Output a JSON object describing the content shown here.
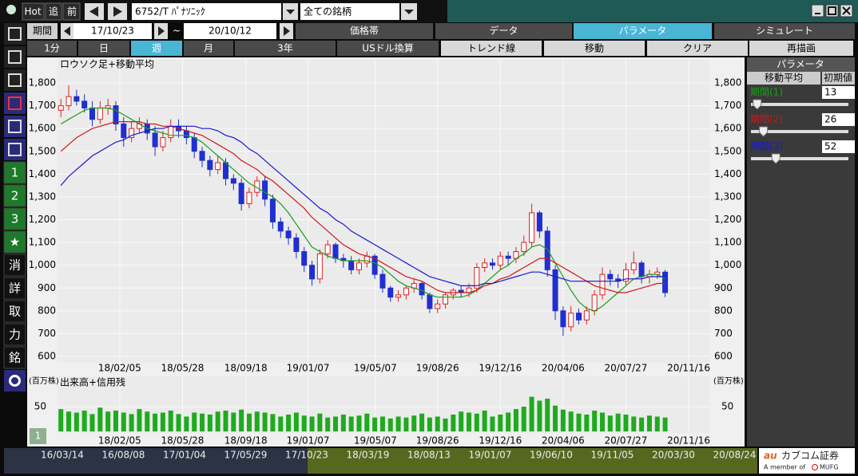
{
  "toolbar": {
    "hot": "Hot",
    "chase": "追",
    "prev": "前",
    "symbol": "6752/T ﾊﾟﾅｿﾆｯｸ",
    "market": "全ての銘柄"
  },
  "period": {
    "label": "期間",
    "from": "17/10/23",
    "sep": "~",
    "to": "20/10/12"
  },
  "tabs": [
    "価格帯",
    "データ",
    "パラメータ",
    "シミュレート"
  ],
  "active_tab": 2,
  "buttons": [
    "1分",
    "日",
    "週",
    "月",
    "3年",
    "USドル換算",
    "トレンド線",
    "移動",
    "クリア",
    "再描画"
  ],
  "active_button": 2,
  "side_tools": [
    "1",
    "2",
    "3",
    "★",
    "消",
    "詳",
    "取",
    "力",
    "銘"
  ],
  "pager": "1",
  "panel": {
    "title": "パラメータ",
    "col1": "移動平均",
    "col2": "初期値",
    "params": [
      {
        "label": "期間(1)",
        "value": 13
      },
      {
        "label": "期間(2)",
        "value": 26
      },
      {
        "label": "期間(3)",
        "value": 52
      }
    ]
  },
  "timeline": [
    "16/03/14",
    "16/08/08",
    "17/01/04",
    "17/05/29",
    "17/10/23",
    "18/03/19",
    "18/08/13",
    "19/01/07",
    "19/06/10",
    "19/11/05",
    "20/03/30",
    "20/08/24"
  ],
  "logo": {
    "au": "au",
    "brand": "カブコム証券",
    "member": "A member of",
    "mufg": "MUFG"
  },
  "chart_data": [
    {
      "type": "candlestick",
      "title": "ロウソク足+移動平均",
      "up_color": "#e02020",
      "down_color": "#1f2fd0",
      "x": [
        "17/10/23",
        "17/11/06",
        "17/11/20",
        "17/12/04",
        "17/12/18",
        "18/01/01",
        "18/01/15",
        "18/01/29",
        "18/02/12",
        "18/02/26",
        "18/03/12",
        "18/03/26",
        "18/04/09",
        "18/04/23",
        "18/05/07",
        "18/05/21",
        "18/06/04",
        "18/06/18",
        "18/07/02",
        "18/07/16",
        "18/07/30",
        "18/08/13",
        "18/08/27",
        "18/09/10",
        "18/09/24",
        "18/10/08",
        "18/10/22",
        "18/11/05",
        "18/11/19",
        "18/12/03",
        "18/12/17",
        "18/12/31",
        "19/01/14",
        "19/01/28",
        "19/02/11",
        "19/02/25",
        "19/03/11",
        "19/03/25",
        "19/04/08",
        "19/04/22",
        "19/05/06",
        "19/05/20",
        "19/06/03",
        "19/06/17",
        "19/07/01",
        "19/07/15",
        "19/07/29",
        "19/08/12",
        "19/08/26",
        "19/09/09",
        "19/09/23",
        "19/10/07",
        "19/10/21",
        "19/11/04",
        "19/11/18",
        "19/12/02",
        "19/12/16",
        "19/12/30",
        "20/01/13",
        "20/01/27",
        "20/02/10",
        "20/02/24",
        "20/03/09",
        "20/03/23",
        "20/04/06",
        "20/04/20",
        "20/05/04",
        "20/05/18",
        "20/06/01",
        "20/06/15",
        "20/06/29",
        "20/07/13",
        "20/07/27",
        "20/08/10",
        "20/08/24",
        "20/09/07",
        "20/09/21",
        "20/10/05"
      ],
      "open": [
        1680,
        1700,
        1740,
        1720,
        1690,
        1640,
        1690,
        1700,
        1620,
        1560,
        1600,
        1620,
        1580,
        1520,
        1560,
        1610,
        1590,
        1560,
        1500,
        1460,
        1420,
        1450,
        1380,
        1360,
        1270,
        1320,
        1370,
        1290,
        1190,
        1150,
        1120,
        1060,
        1000,
        940,
        1050,
        1090,
        1030,
        1020,
        980,
        1010,
        1040,
        960,
        900,
        860,
        870,
        900,
        920,
        870,
        810,
        830,
        870,
        890,
        880,
        900,
        990,
        1010,
        1000,
        1040,
        1030,
        1060,
        1100,
        1230,
        1150,
        980,
        800,
        730,
        790,
        760,
        800,
        870,
        960,
        940,
        930,
        980,
        1010,
        950,
        960,
        970
      ],
      "high": [
        1730,
        1790,
        1770,
        1750,
        1720,
        1720,
        1730,
        1720,
        1650,
        1630,
        1650,
        1640,
        1610,
        1590,
        1640,
        1640,
        1610,
        1580,
        1520,
        1480,
        1480,
        1470,
        1400,
        1380,
        1340,
        1390,
        1390,
        1310,
        1210,
        1170,
        1140,
        1080,
        1020,
        1070,
        1110,
        1100,
        1050,
        1040,
        1030,
        1060,
        1050,
        980,
        910,
        890,
        910,
        940,
        930,
        880,
        850,
        880,
        900,
        910,
        920,
        1010,
        1030,
        1030,
        1060,
        1060,
        1080,
        1130,
        1270,
        1240,
        1170,
        1000,
        820,
        820,
        810,
        820,
        890,
        990,
        980,
        960,
        1010,
        1060,
        1020,
        980,
        990,
        980
      ],
      "low": [
        1650,
        1680,
        1700,
        1670,
        1610,
        1620,
        1660,
        1590,
        1520,
        1540,
        1580,
        1550,
        1480,
        1500,
        1540,
        1560,
        1530,
        1470,
        1430,
        1390,
        1400,
        1350,
        1330,
        1240,
        1250,
        1300,
        1260,
        1160,
        1120,
        1090,
        1030,
        970,
        910,
        920,
        1030,
        1010,
        990,
        960,
        960,
        990,
        940,
        880,
        840,
        840,
        850,
        880,
        850,
        790,
        790,
        810,
        850,
        860,
        860,
        880,
        970,
        980,
        980,
        1000,
        1010,
        1040,
        1080,
        1120,
        950,
        760,
        690,
        710,
        740,
        740,
        780,
        850,
        910,
        900,
        910,
        960,
        920,
        920,
        940,
        860
      ],
      "close": [
        1700,
        1740,
        1720,
        1690,
        1640,
        1690,
        1700,
        1620,
        1560,
        1600,
        1620,
        1580,
        1520,
        1560,
        1610,
        1590,
        1560,
        1500,
        1460,
        1420,
        1450,
        1380,
        1360,
        1270,
        1320,
        1370,
        1290,
        1190,
        1150,
        1120,
        1060,
        1000,
        940,
        1050,
        1090,
        1030,
        1020,
        980,
        1010,
        1040,
        960,
        900,
        860,
        870,
        900,
        920,
        870,
        810,
        830,
        870,
        890,
        880,
        900,
        990,
        1010,
        1000,
        1040,
        1030,
        1060,
        1100,
        1230,
        1150,
        980,
        800,
        730,
        790,
        760,
        800,
        870,
        960,
        940,
        930,
        980,
        1010,
        950,
        960,
        970,
        880
      ],
      "series": [
        {
          "color": "#18a018",
          "values": [
            1620,
            1640,
            1660,
            1680,
            1690,
            1690,
            1690,
            1680,
            1660,
            1640,
            1620,
            1600,
            1590,
            1580,
            1570,
            1570,
            1570,
            1560,
            1540,
            1510,
            1480,
            1450,
            1420,
            1390,
            1360,
            1340,
            1320,
            1300,
            1270,
            1230,
            1180,
            1130,
            1080,
            1060,
            1040,
            1030,
            1020,
            1020,
            1020,
            1020,
            1010,
            990,
            960,
            930,
            910,
            900,
            890,
            870,
            860,
            860,
            860,
            860,
            870,
            890,
            920,
            950,
            980,
            1000,
            1030,
            1050,
            1080,
            1090,
            1070,
            1010,
            950,
            890,
            840,
            810,
            800,
            820,
            850,
            880,
            910,
            940,
            950,
            960,
            960,
            940
          ]
        },
        {
          "color": "#d01818",
          "values": [
            1500,
            1530,
            1560,
            1580,
            1600,
            1610,
            1620,
            1630,
            1630,
            1630,
            1630,
            1620,
            1620,
            1610,
            1610,
            1600,
            1590,
            1580,
            1570,
            1550,
            1530,
            1510,
            1490,
            1460,
            1440,
            1420,
            1390,
            1370,
            1340,
            1310,
            1280,
            1250,
            1210,
            1180,
            1150,
            1120,
            1090,
            1070,
            1050,
            1040,
            1030,
            1010,
            990,
            970,
            950,
            940,
            930,
            910,
            890,
            880,
            880,
            880,
            880,
            890,
            910,
            920,
            940,
            950,
            970,
            990,
            1010,
            1030,
            1030,
            1010,
            990,
            970,
            950,
            930,
            910,
            900,
            890,
            880,
            880,
            890,
            900,
            910,
            920,
            920
          ]
        },
        {
          "color": "#1818d0",
          "values": [
            1350,
            1390,
            1420,
            1450,
            1480,
            1500,
            1520,
            1540,
            1550,
            1570,
            1580,
            1590,
            1600,
            1600,
            1610,
            1610,
            1610,
            1610,
            1600,
            1600,
            1590,
            1570,
            1560,
            1540,
            1510,
            1490,
            1460,
            1430,
            1400,
            1370,
            1340,
            1310,
            1280,
            1250,
            1230,
            1200,
            1180,
            1150,
            1130,
            1110,
            1090,
            1070,
            1050,
            1030,
            1010,
            990,
            970,
            950,
            940,
            930,
            920,
            910,
            910,
            910,
            920,
            920,
            930,
            940,
            950,
            960,
            970,
            970,
            960,
            950,
            940,
            930,
            930,
            930,
            930,
            930,
            930,
            930,
            940,
            940,
            940,
            950,
            950,
            950
          ]
        }
      ],
      "xlim": [
        "17/10/17",
        "20/12/23"
      ],
      "xticks": [
        "18/02/05",
        "18/05/28",
        "18/09/18",
        "19/01/07",
        "19/05/07",
        "19/08/26",
        "19/12/16",
        "20/04/06",
        "20/07/27",
        "20/11/16"
      ],
      "ylim": [
        572,
        1905
      ],
      "yticks": [
        600,
        700,
        800,
        900,
        {
          "value": 1000,
          "label": "1,000"
        },
        {
          "value": 1100,
          "label": "1,100"
        },
        {
          "value": 1200,
          "label": "1,200"
        },
        {
          "value": 1300,
          "label": "1,300"
        },
        {
          "value": 1400,
          "label": "1,400"
        },
        {
          "value": 1500,
          "label": "1,500"
        },
        {
          "value": 1600,
          "label": "1,600"
        },
        {
          "value": 1700,
          "label": "1,700"
        },
        {
          "value": 1800,
          "label": "1,800"
        }
      ],
      "grid": true
    },
    {
      "type": "bar",
      "title": "出来高+信用残",
      "ylabel": "(百万株)",
      "color": "#1faa1f",
      "values": [
        45,
        40,
        38,
        42,
        35,
        48,
        40,
        42,
        38,
        35,
        45,
        40,
        36,
        38,
        42,
        35,
        30,
        38,
        36,
        34,
        40,
        42,
        38,
        44,
        36,
        40,
        38,
        35,
        30,
        34,
        38,
        32,
        30,
        36,
        28,
        30,
        34,
        30,
        32,
        36,
        28,
        30,
        26,
        30,
        28,
        32,
        36,
        28,
        30,
        26,
        34,
        40,
        38,
        36,
        42,
        30,
        34,
        38,
        45,
        50,
        70,
        62,
        66,
        52,
        44,
        40,
        36,
        34,
        42,
        38,
        32,
        36,
        34,
        30,
        28,
        32,
        30,
        28
      ],
      "ylim": [
        -3,
        111
      ],
      "yticks": [
        50
      ],
      "grid": true
    }
  ]
}
